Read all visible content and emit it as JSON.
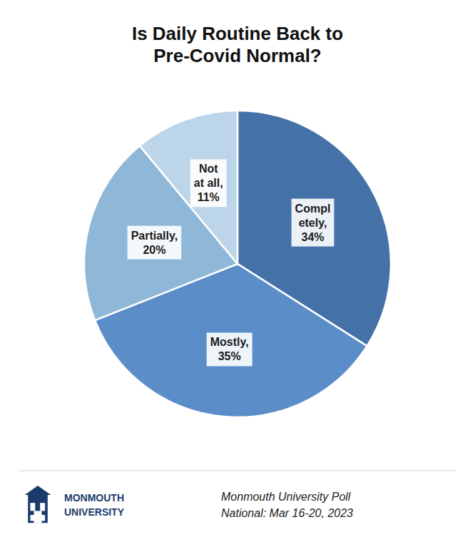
{
  "chart_data": {
    "type": "pie",
    "title": "Is Daily Routine Back to\nPre-Covid Normal?",
    "values": [
      34,
      35,
      20,
      11
    ],
    "value_labels": [
      "Compl\netely,\n34%",
      "Mostly,\n35%",
      "Partially,\n20%",
      "Not\nat all,\n11%"
    ],
    "colors": [
      "#4472A8",
      "#5B8DC9",
      "#8FB8D8",
      "#BDD5E8"
    ],
    "data_labels": true,
    "annotations": [
      "MONMOUTH\nUNIVERSITY",
      "Monmouth University Poll\nNational: Mar 16-20, 2023"
    ]
  }
}
